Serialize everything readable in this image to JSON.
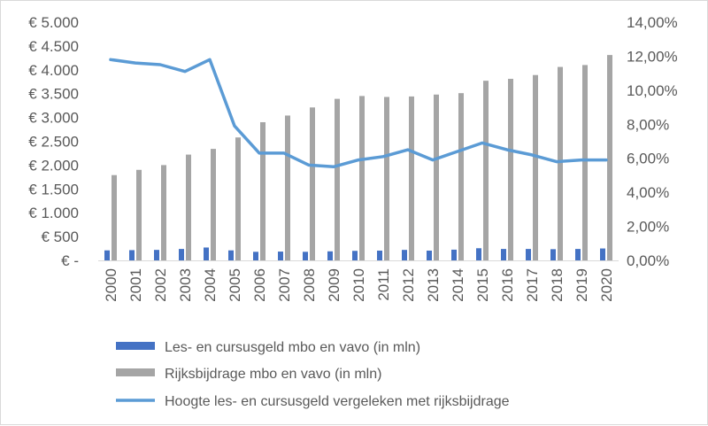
{
  "chart_data": {
    "type": "bar",
    "categories": [
      "2000",
      "2001",
      "2002",
      "2003",
      "2004",
      "2005",
      "2006",
      "2007",
      "2008",
      "2009",
      "2010",
      "2011",
      "2012",
      "2013",
      "2014",
      "2015",
      "2016",
      "2017",
      "2018",
      "2019",
      "2020"
    ],
    "series": [
      {
        "name": "Les- en cursusgeld mbo en vavo (in mln)",
        "type": "bar",
        "axis": "left",
        "color": "#4472c4",
        "values": [
          210,
          215,
          220,
          240,
          270,
          210,
          180,
          185,
          180,
          190,
          200,
          205,
          220,
          205,
          225,
          255,
          240,
          240,
          235,
          240,
          250
        ]
      },
      {
        "name": "Rijksbijdrage mbo en vavo (in mln)",
        "type": "bar",
        "axis": "left",
        "color": "#a5a5a5",
        "values": [
          1790,
          1900,
          2000,
          2220,
          2340,
          2580,
          2900,
          3040,
          3210,
          3390,
          3450,
          3430,
          3440,
          3480,
          3510,
          3770,
          3810,
          3890,
          4060,
          4100,
          4310
        ]
      },
      {
        "name": "Hoogte les- en cursusgeld vergeleken met rijksbijdrage",
        "type": "line",
        "axis": "right",
        "color": "#5b9bd5",
        "values": [
          11.8,
          11.6,
          11.5,
          11.1,
          11.8,
          7.9,
          6.3,
          6.3,
          5.6,
          5.5,
          5.9,
          6.1,
          6.5,
          5.9,
          6.4,
          6.9,
          6.5,
          6.2,
          5.8,
          5.9,
          5.9
        ]
      }
    ],
    "y_left": {
      "ticks": [
        "€ -",
        "€ 500",
        "€ 1.000",
        "€ 1.500",
        "€ 2.000",
        "€ 2.500",
        "€ 3.000",
        "€ 3.500",
        "€ 4.000",
        "€ 4.500",
        "€ 5.000"
      ],
      "ylim": [
        0,
        5000
      ]
    },
    "y_right": {
      "ticks": [
        "0,00%",
        "2,00%",
        "4,00%",
        "6,00%",
        "8,00%",
        "10,00%",
        "12,00%",
        "14,00%"
      ],
      "ylim": [
        0,
        14
      ]
    },
    "grid": false,
    "legend_position": "bottom"
  }
}
